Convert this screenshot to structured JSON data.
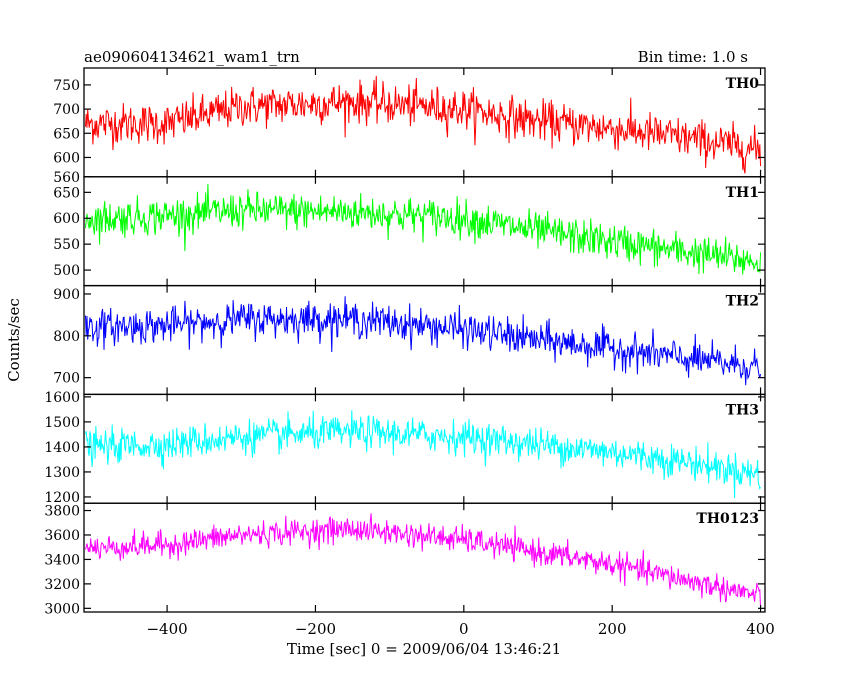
{
  "chart_data": {
    "type": "line",
    "title": "ae090604134621_wam1_trn",
    "bin_time_label": "Bin time: 1.0 s",
    "xlabel": "Time [sec] 0 = 2009/06/04 13:46:21",
    "ylabel": "Counts/sec",
    "xlim": [
      -512,
      406
    ],
    "x_ticks": [
      -400,
      -200,
      0,
      200,
      400
    ],
    "bin_seconds": 1.0,
    "panels": [
      {
        "name": "TH0",
        "color": "#ff0000",
        "ylim": [
          560,
          785
        ],
        "y_ticks": [
          560,
          600,
          650,
          700,
          750
        ],
        "noise": 38,
        "trend": [
          {
            "x": -510,
            "y": 670
          },
          {
            "x": -400,
            "y": 670
          },
          {
            "x": -300,
            "y": 705
          },
          {
            "x": -150,
            "y": 715
          },
          {
            "x": 0,
            "y": 700
          },
          {
            "x": 100,
            "y": 675
          },
          {
            "x": 200,
            "y": 660
          },
          {
            "x": 300,
            "y": 640
          },
          {
            "x": 400,
            "y": 615
          }
        ]
      },
      {
        "name": "TH1",
        "color": "#00ff00",
        "ylim": [
          470,
          680
        ],
        "y_ticks": [
          500,
          550,
          600,
          650
        ],
        "noise": 32,
        "trend": [
          {
            "x": -510,
            "y": 598
          },
          {
            "x": -400,
            "y": 605
          },
          {
            "x": -300,
            "y": 615
          },
          {
            "x": -150,
            "y": 612
          },
          {
            "x": 0,
            "y": 600
          },
          {
            "x": 100,
            "y": 575
          },
          {
            "x": 200,
            "y": 555
          },
          {
            "x": 300,
            "y": 535
          },
          {
            "x": 400,
            "y": 515
          }
        ]
      },
      {
        "name": "TH2",
        "color": "#0000ff",
        "ylim": [
          660,
          920
        ],
        "y_ticks": [
          700,
          800,
          900
        ],
        "noise": 38,
        "trend": [
          {
            "x": -510,
            "y": 820
          },
          {
            "x": -400,
            "y": 825
          },
          {
            "x": -300,
            "y": 840
          },
          {
            "x": -150,
            "y": 840
          },
          {
            "x": 0,
            "y": 815
          },
          {
            "x": 100,
            "y": 790
          },
          {
            "x": 200,
            "y": 770
          },
          {
            "x": 300,
            "y": 745
          },
          {
            "x": 400,
            "y": 725
          }
        ]
      },
      {
        "name": "TH3",
        "color": "#00ffff",
        "ylim": [
          1175,
          1610
        ],
        "y_ticks": [
          1200,
          1300,
          1400,
          1500,
          1600
        ],
        "noise": 60,
        "trend": [
          {
            "x": -510,
            "y": 1400
          },
          {
            "x": -400,
            "y": 1410
          },
          {
            "x": -300,
            "y": 1440
          },
          {
            "x": -150,
            "y": 1460
          },
          {
            "x": 0,
            "y": 1440
          },
          {
            "x": 100,
            "y": 1410
          },
          {
            "x": 200,
            "y": 1380
          },
          {
            "x": 300,
            "y": 1340
          },
          {
            "x": 400,
            "y": 1290
          }
        ]
      },
      {
        "name": "TH0123",
        "color": "#ff00ff",
        "ylim": [
          2970,
          3860
        ],
        "y_ticks": [
          3000,
          3200,
          3400,
          3600,
          3800
        ],
        "noise": 95,
        "trend": [
          {
            "x": -510,
            "y": 3490
          },
          {
            "x": -400,
            "y": 3520
          },
          {
            "x": -300,
            "y": 3600
          },
          {
            "x": -150,
            "y": 3650
          },
          {
            "x": 0,
            "y": 3560
          },
          {
            "x": 100,
            "y": 3460
          },
          {
            "x": 200,
            "y": 3360
          },
          {
            "x": 300,
            "y": 3230
          },
          {
            "x": 400,
            "y": 3100
          }
        ]
      }
    ]
  }
}
